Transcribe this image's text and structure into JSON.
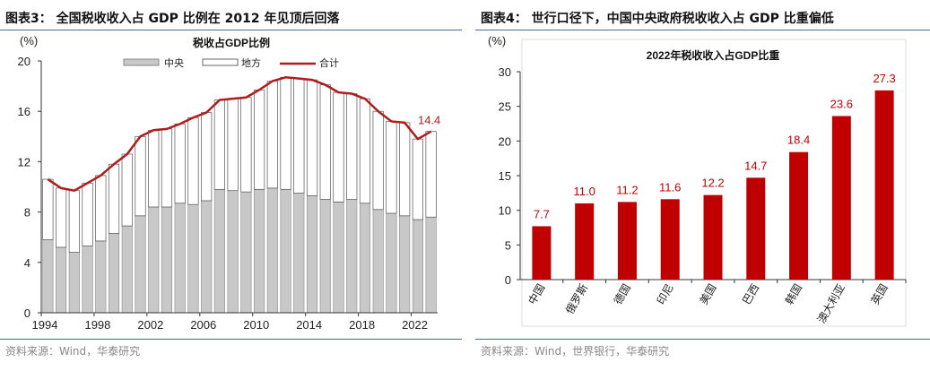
{
  "left": {
    "figure_title": "图表3：  全国税收收入占 GDP 比例在 2012 年见顶后回落",
    "source": "资料来源：Wind，华泰研究"
  },
  "right": {
    "figure_title": "图表4：  世行口径下，中国中央政府税收收入占 GDP 比重偏低",
    "source": "资料来源：Wind，世界银行，华泰研究"
  },
  "chart_data": [
    {
      "type": "bar",
      "stacked": true,
      "title": "税收占GDP比例",
      "ylabel": "(%)",
      "ylim": [
        0,
        20
      ],
      "yticks": [
        0,
        4,
        8,
        12,
        16,
        20
      ],
      "xticks": [
        "1994",
        "1998",
        "2002",
        "2006",
        "2010",
        "2014",
        "2018",
        "2022"
      ],
      "legend_position": "top",
      "categories": [
        1994,
        1995,
        1996,
        1997,
        1998,
        1999,
        2000,
        2001,
        2002,
        2003,
        2004,
        2005,
        2006,
        2007,
        2008,
        2009,
        2010,
        2011,
        2012,
        2013,
        2014,
        2015,
        2016,
        2017,
        2018,
        2019,
        2020,
        2021,
        2022,
        2023
      ],
      "series": [
        {
          "name": "中央",
          "type": "bar",
          "color": "#c8c8c8",
          "values": [
            5.8,
            5.2,
            4.8,
            5.3,
            5.7,
            6.3,
            6.9,
            7.7,
            8.4,
            8.4,
            8.7,
            8.6,
            8.9,
            9.8,
            9.7,
            9.6,
            9.8,
            9.9,
            9.8,
            9.5,
            9.3,
            9.0,
            8.8,
            9.0,
            8.7,
            8.2,
            7.9,
            7.7,
            7.4,
            7.6
          ]
        },
        {
          "name": "地方",
          "type": "bar",
          "color": "#ffffff",
          "values": [
            4.8,
            4.7,
            4.9,
            5.0,
            5.2,
            5.5,
            5.7,
            6.3,
            6.1,
            6.2,
            6.3,
            6.9,
            7.0,
            7.1,
            7.3,
            7.5,
            7.9,
            8.5,
            8.9,
            9.1,
            9.2,
            9.1,
            8.7,
            8.4,
            8.3,
            7.8,
            7.3,
            7.4,
            6.4,
            6.8
          ]
        },
        {
          "name": "合计",
          "type": "line",
          "color": "#b01c1c",
          "values": [
            10.6,
            9.9,
            9.7,
            10.3,
            10.9,
            11.8,
            12.6,
            14.0,
            14.5,
            14.6,
            15.0,
            15.5,
            15.9,
            16.9,
            17.0,
            17.1,
            17.7,
            18.4,
            18.7,
            18.6,
            18.5,
            18.1,
            17.5,
            17.4,
            17.0,
            16.0,
            15.2,
            15.1,
            13.8,
            14.4
          ]
        }
      ],
      "annotation": "14.4"
    },
    {
      "type": "bar",
      "title": "2022年税收收入占GDP比重",
      "ylabel": "(%)",
      "ylim": [
        0,
        30
      ],
      "yticks": [
        0,
        5,
        10,
        15,
        20,
        25,
        30
      ],
      "categories": [
        "中国",
        "俄罗斯",
        "德国",
        "印尼",
        "美国",
        "巴西",
        "韩国",
        "澳大利亚",
        "英国"
      ],
      "values": [
        7.7,
        11.0,
        11.2,
        11.6,
        12.2,
        14.7,
        18.4,
        23.6,
        27.3
      ],
      "data_labels": [
        "7.7",
        "11.0",
        "11.2",
        "11.6",
        "12.2",
        "14.7",
        "18.4",
        "23.6",
        "27.3"
      ],
      "color": "#c00000"
    }
  ]
}
